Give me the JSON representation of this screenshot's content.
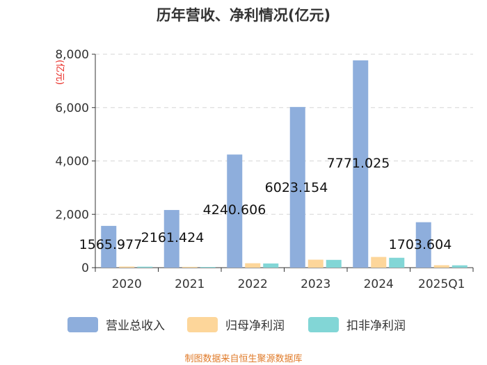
{
  "chart_data": {
    "type": "bar",
    "title": "历年营收、净利情况(亿元)",
    "ylabel": "(亿元)",
    "categories": [
      "2020",
      "2021",
      "2022",
      "2023",
      "2024",
      "2025Q1"
    ],
    "y_ticks": [
      "0",
      "2,000",
      "4,000",
      "6,000",
      "8,000"
    ],
    "ylim": [
      0,
      8000
    ],
    "grid": true,
    "legend_position": "bottom",
    "series": [
      {
        "name": "营业总收入",
        "color": "#8eaedc",
        "values": [
          1565.977,
          2161.424,
          4240.606,
          6023.154,
          7771.025,
          1703.604
        ],
        "labels": [
          "1565.977",
          "2161.424",
          "4240.606",
          "6023.154",
          "7771.025",
          "1703.604"
        ]
      },
      {
        "name": "归母净利润",
        "color": "#fdd69a",
        "values": [
          42,
          30,
          166,
          300,
          402,
          92
        ]
      },
      {
        "name": "扣非净利润",
        "color": "#82d6d6",
        "values": [
          36,
          12,
          157,
          292,
          371,
          88
        ]
      }
    ],
    "source": "制图数据来自恒生聚源数据库"
  }
}
